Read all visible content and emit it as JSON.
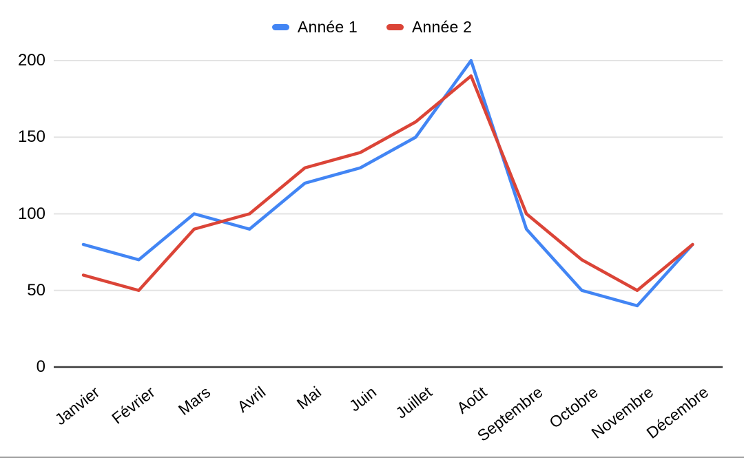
{
  "chart_data": {
    "type": "line",
    "title": "",
    "xlabel": "",
    "ylabel": "",
    "categories": [
      "Janvier",
      "Février",
      "Mars",
      "Avril",
      "Mai",
      "Juin",
      "Juillet",
      "Août",
      "Septembre",
      "Octobre",
      "Novembre",
      "Décembre"
    ],
    "series": [
      {
        "name": "Année 1",
        "color": "#4285F4",
        "values": [
          80,
          70,
          100,
          90,
          120,
          130,
          150,
          200,
          90,
          50,
          40,
          80
        ]
      },
      {
        "name": "Année 2",
        "color": "#DB4437",
        "values": [
          60,
          50,
          90,
          100,
          130,
          140,
          160,
          190,
          100,
          70,
          50,
          80
        ]
      }
    ],
    "yticks": [
      0,
      50,
      100,
      150,
      200
    ],
    "ylim": [
      0,
      200
    ],
    "grid": true,
    "legend_position": "top",
    "x_labels_rotated": true
  },
  "colors": {
    "grid_line": "#e3e3e3",
    "axis_line": "#3b3b3b",
    "label_text": "#000000",
    "bottom_border": "#a3a3a3"
  }
}
